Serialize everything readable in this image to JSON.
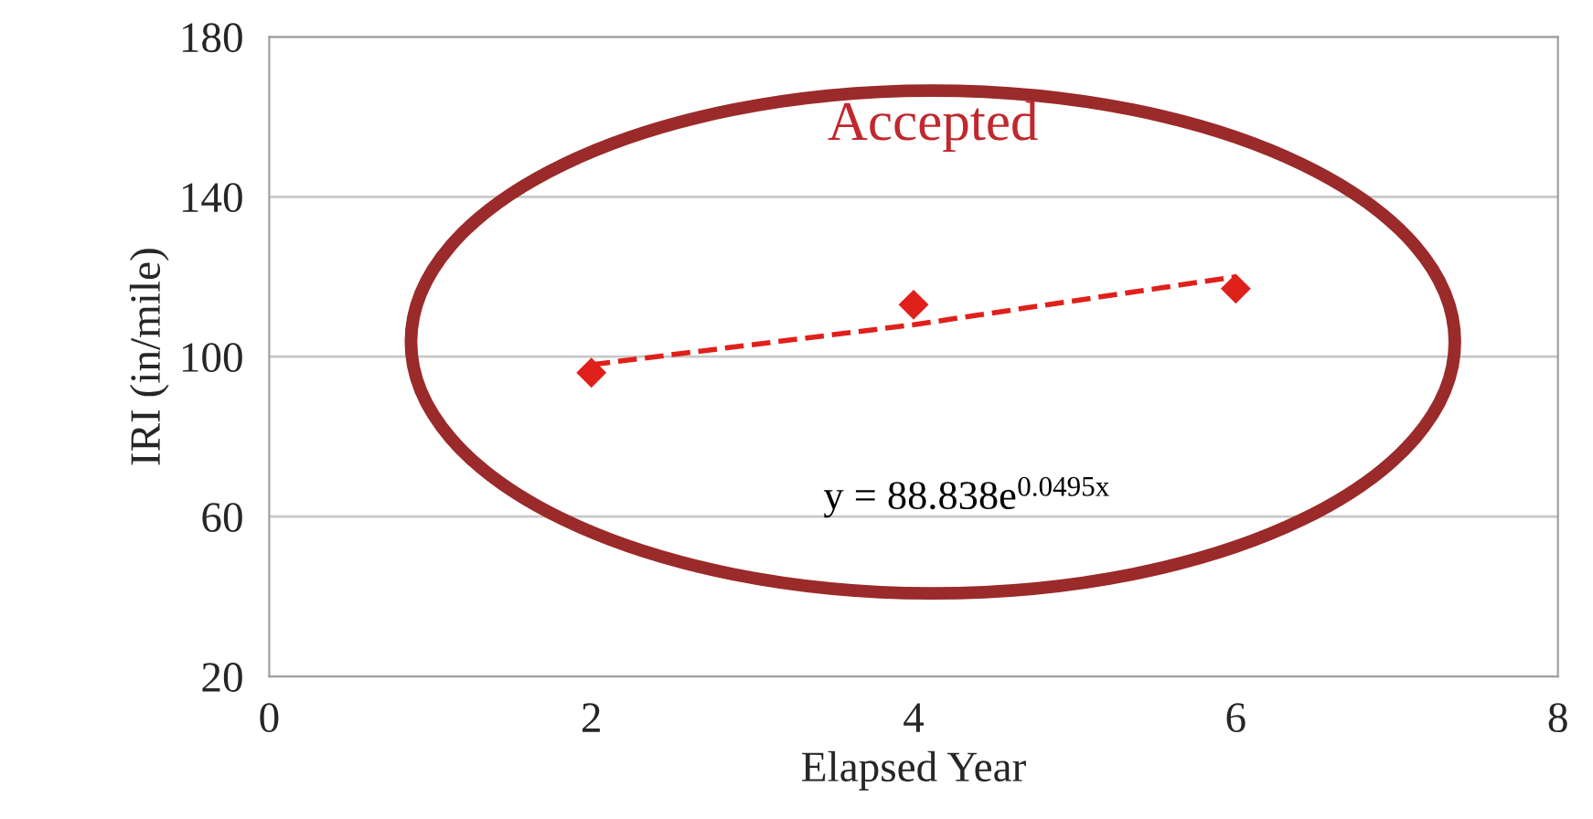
{
  "chart_data": {
    "type": "scatter",
    "xlabel": "Elapsed Year",
    "ylabel": "IRI (in/mile)",
    "series": [
      {
        "color": "#e0201b",
        "marker": "diamond",
        "x": [
          2,
          4,
          6
        ],
        "values": [
          96,
          113,
          117
        ]
      },
      {
        "type": "line",
        "color": "#e0201b",
        "line_style": "dashed",
        "marker": "none",
        "x": [
          2,
          4,
          6
        ],
        "values": [
          98,
          108,
          120
        ]
      }
    ],
    "xlim": [
      0,
      8
    ],
    "xticks": [
      0,
      2,
      4,
      6,
      8
    ],
    "ylim": [
      20,
      180
    ],
    "yticks": [
      20,
      60,
      100,
      140,
      180
    ],
    "grid": "y",
    "legend": false,
    "annotations": [
      "Accepted",
      "y = 88.838e$^{0.0495x}$"
    ]
  }
}
